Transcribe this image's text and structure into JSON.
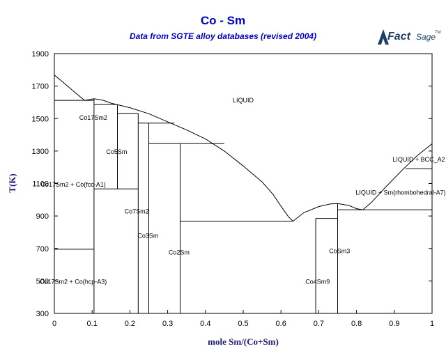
{
  "title": "Co - Sm",
  "subtitle": "Data from SGTE alloy databases (revised 2004)",
  "logo": {
    "text_main": "Fact",
    "text_sub": "Sage",
    "mark": "TM"
  },
  "colors": {
    "title": "#0000cc",
    "axis_title": "#1a1a7a",
    "lines": "#000000"
  },
  "chart_data": {
    "type": "phase-diagram",
    "title": "Co - Sm",
    "subtitle": "Data from SGTE alloy databases (revised 2004)",
    "xlabel": "mole Sm/(Co+Sm)",
    "ylabel": "T(K)",
    "xlim": [
      0,
      1
    ],
    "ylim": [
      300,
      1900
    ],
    "xticks": [
      0,
      0.1,
      0.2,
      0.3,
      0.4,
      0.5,
      0.6,
      0.7,
      0.8,
      0.9,
      1
    ],
    "xtick_labels": [
      "0",
      "0.1",
      "0.2",
      "0.3",
      "0.4",
      "0.5",
      "0.6",
      "0.7",
      "0.8",
      "0.9",
      "1"
    ],
    "yticks": [
      300,
      500,
      700,
      900,
      1100,
      1300,
      1500,
      1700,
      1900
    ],
    "ytick_labels": [
      "300",
      "500",
      "700",
      "900",
      "1100",
      "1300",
      "1500",
      "1700",
      "1900"
    ],
    "curves": [
      {
        "name": "liquidus-co-side",
        "points": [
          [
            0,
            1768
          ],
          [
            0.02,
            1730
          ],
          [
            0.05,
            1670
          ],
          [
            0.08,
            1612
          ]
        ]
      },
      {
        "name": "liquidus-co17sm2",
        "points": [
          [
            0.08,
            1612
          ],
          [
            0.105,
            1622
          ],
          [
            0.13,
            1612
          ],
          [
            0.15,
            1595
          ]
        ]
      },
      {
        "name": "liquidus-main",
        "points": [
          [
            0.15,
            1595
          ],
          [
            0.2,
            1567
          ],
          [
            0.25,
            1530
          ],
          [
            0.3,
            1480
          ],
          [
            0.35,
            1430
          ],
          [
            0.4,
            1375
          ],
          [
            0.45,
            1300
          ],
          [
            0.5,
            1208
          ],
          [
            0.55,
            1110
          ],
          [
            0.58,
            1030
          ],
          [
            0.6,
            960
          ],
          [
            0.62,
            895
          ],
          [
            0.632,
            868
          ]
        ]
      },
      {
        "name": "liquidus-cosm3",
        "points": [
          [
            0.632,
            868
          ],
          [
            0.66,
            920
          ],
          [
            0.7,
            958
          ],
          [
            0.73,
            974
          ],
          [
            0.75,
            977
          ],
          [
            0.78,
            965
          ],
          [
            0.8,
            945
          ],
          [
            0.817,
            938
          ]
        ]
      },
      {
        "name": "liquidus-sm-side",
        "points": [
          [
            0.817,
            938
          ],
          [
            0.84,
            985
          ],
          [
            0.88,
            1085
          ],
          [
            0.92,
            1180
          ],
          [
            0.96,
            1270
          ],
          [
            1.0,
            1345
          ]
        ]
      }
    ],
    "horizontal_lines": [
      {
        "x": [
          0,
          0.105
        ],
        "y": 1612
      },
      {
        "x": [
          0.105,
          0.167
        ],
        "y": 1587
      },
      {
        "x": [
          0.167,
          0.222
        ],
        "y": 1532
      },
      {
        "x": [
          0.222,
          0.318
        ],
        "y": 1472
      },
      {
        "x": [
          0.25,
          0.45
        ],
        "y": 1346
      },
      {
        "x": [
          0.105,
          0.222
        ],
        "y": 1067
      },
      {
        "x": [
          0,
          0.105
        ],
        "y": 695
      },
      {
        "x": [
          0.333,
          0.632
        ],
        "y": 868
      },
      {
        "x": [
          0.692,
          0.75
        ],
        "y": 885
      },
      {
        "x": [
          0.75,
          1.0
        ],
        "y": 938
      },
      {
        "x": [
          0.93,
          1.0
        ],
        "y": 1190
      }
    ],
    "vertical_lines": [
      {
        "x": 0.105,
        "y": [
          300,
          1622
        ]
      },
      {
        "x": 0.167,
        "y": [
          1067,
          1587
        ]
      },
      {
        "x": 0.222,
        "y": [
          300,
          1532
        ]
      },
      {
        "x": 0.25,
        "y": [
          300,
          1472
        ]
      },
      {
        "x": 0.333,
        "y": [
          300,
          1346
        ]
      },
      {
        "x": 0.692,
        "y": [
          300,
          885
        ]
      },
      {
        "x": 0.75,
        "y": [
          300,
          977
        ]
      }
    ],
    "labels": [
      {
        "text": "LIQUID",
        "x": 0.5,
        "y": 1600
      },
      {
        "text": "Co17Sm2",
        "x": 0.103,
        "y": 1492
      },
      {
        "text": "Co5Sm",
        "x": 0.165,
        "y": 1282
      },
      {
        "text": "Co17Sm2 + Co(fcc-A1)",
        "x": 0.05,
        "y": 1080
      },
      {
        "text": "Co7Sm2",
        "x": 0.218,
        "y": 915
      },
      {
        "text": "Co3Sm",
        "x": 0.248,
        "y": 765
      },
      {
        "text": "Co2Sm",
        "x": 0.33,
        "y": 662
      },
      {
        "text": "CoSm3",
        "x": 0.755,
        "y": 670
      },
      {
        "text": "Co4Sm9",
        "x": 0.697,
        "y": 483
      },
      {
        "text": "Co17Sm2 + Co(hcp-A3)",
        "x": 0.05,
        "y": 483
      },
      {
        "text": "LIQUID + BCC_A2",
        "x": 0.965,
        "y": 1235
      },
      {
        "text": "LIQUID + Sm(rhombohedral-A7)",
        "x": 0.917,
        "y": 1032
      }
    ]
  }
}
